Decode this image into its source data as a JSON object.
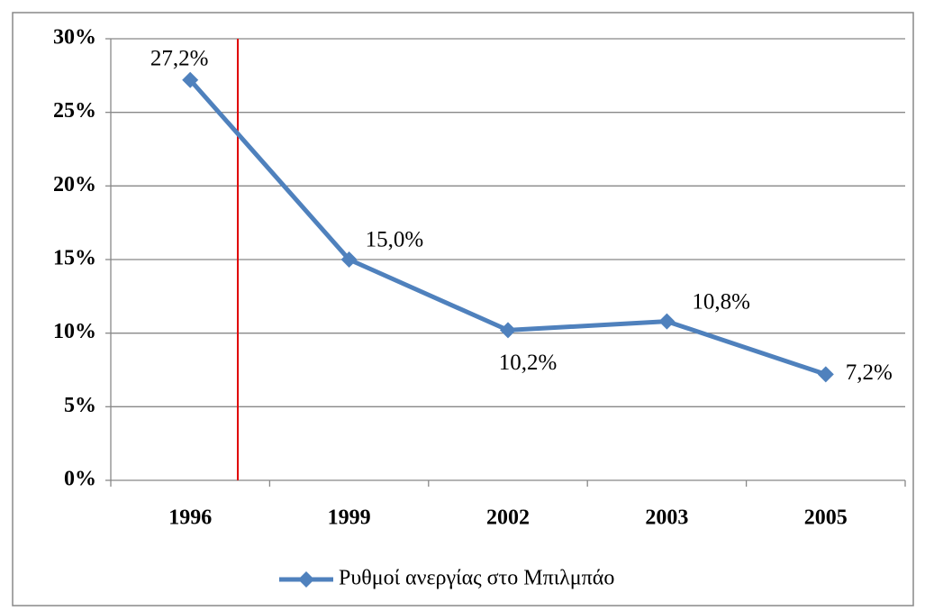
{
  "chart_data": {
    "type": "line",
    "categories": [
      "1996",
      "1999",
      "2002",
      "2003",
      "2005"
    ],
    "series": [
      {
        "name": "Ρυθμοί ανεργίας στο Μπιλμπάο",
        "color": "#4f81bd",
        "values": [
          27.2,
          15.0,
          10.2,
          10.8,
          7.2
        ],
        "value_labels": [
          "27,2%",
          "15,0%",
          "10,2%",
          "10,8%",
          "7,2%"
        ]
      }
    ],
    "ylim": [
      0,
      30
    ],
    "yticks": [
      {
        "value": 0,
        "label": "0%"
      },
      {
        "value": 5,
        "label": "5%"
      },
      {
        "value": 10,
        "label": "10%"
      },
      {
        "value": 15,
        "label": "15%"
      },
      {
        "value": 20,
        "label": "20%"
      },
      {
        "value": 25,
        "label": "25%"
      },
      {
        "value": 30,
        "label": "30%"
      }
    ],
    "grid": true,
    "legend": "bottom"
  }
}
